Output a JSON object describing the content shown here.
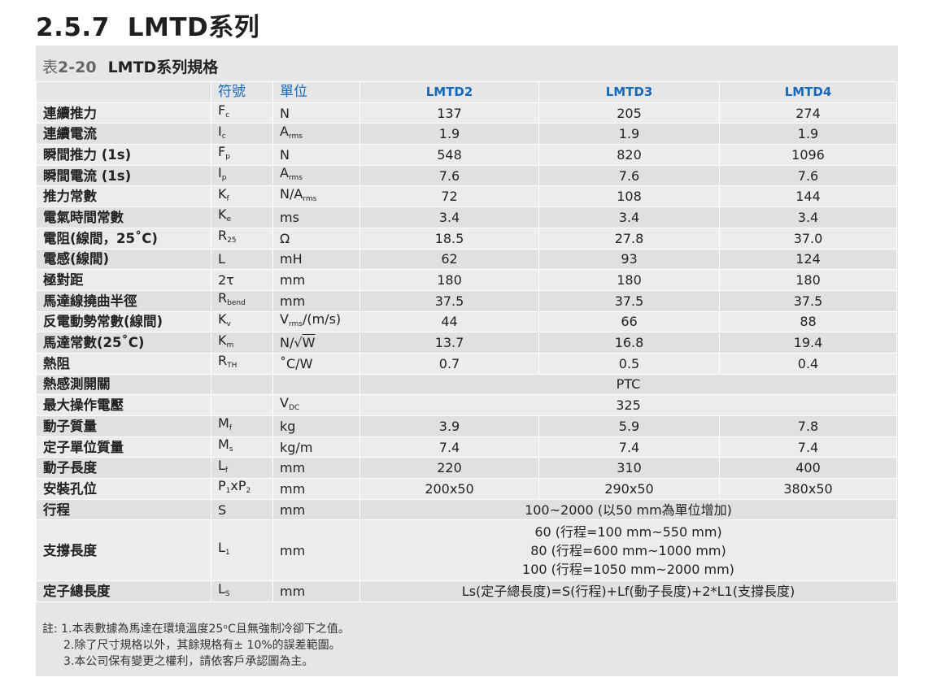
{
  "page": {
    "section_number": "2.5.7",
    "section_title": "LMTD系列"
  },
  "table": {
    "caption_prefix": "表",
    "caption_number": "2-20",
    "caption_title": "LMTD系列規格",
    "headers": {
      "symbol": "符號",
      "unit": "單位",
      "models": [
        "LMTD2",
        "LMTD3",
        "LMTD4"
      ]
    },
    "rows": [
      {
        "name": "連續推力",
        "sym": "F",
        "sym_sub": "c",
        "unit": "N",
        "unit_sub": "",
        "unit_suffix": "",
        "values": [
          "137",
          "205",
          "274"
        ]
      },
      {
        "name": "連續電流",
        "sym": "I",
        "sym_sub": "c",
        "unit": "A",
        "unit_sub": "rms",
        "unit_suffix": "",
        "values": [
          "1.9",
          "1.9",
          "1.9"
        ]
      },
      {
        "name": "瞬間推力 (1s)",
        "sym": "F",
        "sym_sub": "p",
        "unit": "N",
        "unit_sub": "",
        "unit_suffix": "",
        "values": [
          "548",
          "820",
          "1096"
        ]
      },
      {
        "name": "瞬間電流 (1s)",
        "sym": "I",
        "sym_sub": "p",
        "unit": "A",
        "unit_sub": "rms",
        "unit_suffix": "",
        "values": [
          "7.6",
          "7.6",
          "7.6"
        ]
      },
      {
        "name": "推力常數",
        "sym": "K",
        "sym_sub": "f",
        "unit": "N/A",
        "unit_sub": "rms",
        "unit_suffix": "",
        "values": [
          "72",
          "108",
          "144"
        ]
      },
      {
        "name": "電氣時間常數",
        "sym": "K",
        "sym_sub": "e",
        "unit": "ms",
        "unit_sub": "",
        "unit_suffix": "",
        "values": [
          "3.4",
          "3.4",
          "3.4"
        ]
      },
      {
        "name": "電阻(線間，25˚C)",
        "sym": "R",
        "sym_sub": "25",
        "unit": "Ω",
        "unit_sub": "",
        "unit_suffix": "",
        "values": [
          "18.5",
          "27.8",
          "37.0"
        ]
      },
      {
        "name": "電感(線間)",
        "sym": "L",
        "sym_sub": "",
        "unit": "mH",
        "unit_sub": "",
        "unit_suffix": "",
        "values": [
          "62",
          "93",
          "124"
        ]
      },
      {
        "name": "極對距",
        "sym": "2τ",
        "sym_sub": "",
        "unit": "mm",
        "unit_sub": "",
        "unit_suffix": "",
        "values": [
          "180",
          "180",
          "180"
        ]
      },
      {
        "name": "馬達線撓曲半徑",
        "sym": "R",
        "sym_sub": "bend",
        "unit": "mm",
        "unit_sub": "",
        "unit_suffix": "",
        "values": [
          "37.5",
          "37.5",
          "37.5"
        ]
      },
      {
        "name": "反電動勢常數(線間)",
        "sym": "K",
        "sym_sub": "v",
        "unit": "V",
        "unit_sub": "rms",
        "unit_suffix": "/(m/s)",
        "values": [
          "44",
          "66",
          "88"
        ]
      },
      {
        "name": "馬達常數(25˚C)",
        "sym": "K",
        "sym_sub": "m",
        "unit": "N/√",
        "unit_sub": "",
        "unit_suffix": "W",
        "values": [
          "13.7",
          "16.8",
          "19.4"
        ]
      },
      {
        "name": "熱阻",
        "sym": "R",
        "sym_sub": "TH",
        "unit": "˚C/W",
        "unit_sub": "",
        "unit_suffix": "",
        "values": [
          "0.7",
          "0.5",
          "0.4"
        ]
      }
    ],
    "merged_rows": [
      {
        "name": "熱感測開關",
        "sym": "",
        "sym_sub": "",
        "unit": "",
        "unit_sub": "",
        "value": "PTC"
      },
      {
        "name": "最大操作電壓",
        "sym": "",
        "sym_sub": "",
        "unit": "V",
        "unit_sub": "DC",
        "value": "325"
      }
    ],
    "rows2": [
      {
        "name": "動子質量",
        "sym": "M",
        "sym_sub": "f",
        "unit": "kg",
        "values": [
          "3.9",
          "5.9",
          "7.8"
        ]
      },
      {
        "name": "定子單位質量",
        "sym": "M",
        "sym_sub": "s",
        "unit": "kg/m",
        "values": [
          "7.4",
          "7.4",
          "7.4"
        ]
      },
      {
        "name": "動子長度",
        "sym": "L",
        "sym_sub": "f",
        "unit": "mm",
        "values": [
          "220",
          "310",
          "400"
        ]
      },
      {
        "name": "安裝孔位",
        "sym": "P",
        "sym_sub": "1",
        "sym_mid": "xP",
        "sym_sub2": "2",
        "unit": "mm",
        "values": [
          "200x50",
          "290x50",
          "380x50"
        ]
      }
    ],
    "stroke": {
      "name": "行程",
      "sym": "S",
      "unit": "mm",
      "value": "100~2000 (以50 mm為單位增加)"
    },
    "support": {
      "name": "支撐長度",
      "sym": "L",
      "sym_sub": "1",
      "unit": "mm",
      "lines": [
        "60 (行程=100 mm~550 mm)",
        "80 (行程=600 mm~1000 mm)",
        "100 (行程=1050 mm~2000 mm)"
      ]
    },
    "stator_total": {
      "name": "定子總長度",
      "sym": "L",
      "sym_sub": "S",
      "unit": "mm",
      "value": "Ls(定子總長度)=S(行程)+Lf(動子長度)+2*L1(支撐長度)"
    }
  },
  "notes": [
    "註: 1.本表數據為馬達在環境溫度25ᵒC且無強制冷卻下之值。",
    "2.除了尺寸規格以外，其餘規格有± 10%的誤差範圍。",
    "3.本公司保有變更之權利，請依客戶承認圖為主。"
  ],
  "colors": {
    "header_text": "#1668b9",
    "panel_bg": "#e6e6e6"
  }
}
